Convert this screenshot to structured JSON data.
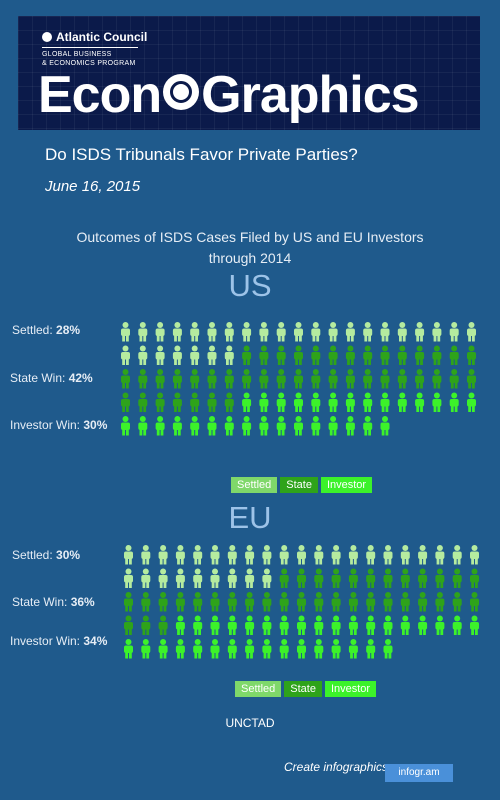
{
  "header": {
    "org": "Atlantic Council",
    "program_line1": "GLOBAL BUSINESS",
    "program_line2": "& ECONOMICS PROGRAM",
    "brand_left": "Econ",
    "brand_right": "Graphics"
  },
  "question": "Do ISDS Tribunals Favor Private Parties?",
  "date": "June 16, 2015",
  "chart_title_line1": "Outcomes of ISDS Cases Filed by US and EU Investors",
  "chart_title_line2": "through 2014",
  "colors": {
    "settled": "#b5eb9f",
    "state": "#2ea31a",
    "investor": "#3cf22a",
    "background": "#1f5a8c"
  },
  "legend": {
    "settled": "Settled",
    "state": "State",
    "investor": "Investor"
  },
  "source": "UNCTAD",
  "footer": {
    "text": "Create infographics",
    "badge": "infogr.am"
  },
  "chart_data": [
    {
      "type": "pictogram",
      "title": "US",
      "categories": [
        "Settled",
        "State Win",
        "Investor Win"
      ],
      "values": [
        28,
        42,
        30
      ],
      "unit": "%",
      "row_labels": [
        {
          "name": "Settled:",
          "value": "28%"
        },
        {
          "name": "State Win:",
          "value": "42%"
        },
        {
          "name": "Investor Win:",
          "value": "30%"
        }
      ]
    },
    {
      "type": "pictogram",
      "title": "EU",
      "categories": [
        "Settled",
        "State Win",
        "Investor Win"
      ],
      "values": [
        30,
        36,
        34
      ],
      "unit": "%",
      "row_labels": [
        {
          "name": "Settled:",
          "value": "30%"
        },
        {
          "name": "State Win:",
          "value": "36%"
        },
        {
          "name": "Investor Win:",
          "value": "34%"
        }
      ]
    }
  ]
}
